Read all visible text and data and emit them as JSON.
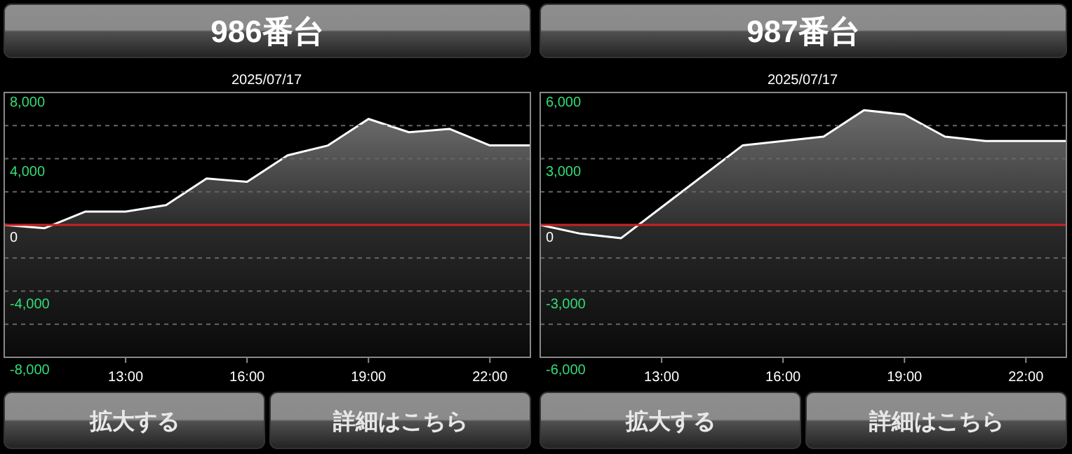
{
  "chart_data": [
    {
      "type": "area",
      "title": "986番台",
      "subtitle": "2025/07/17",
      "x": [
        10,
        11,
        12,
        13,
        14,
        15,
        16,
        17,
        18,
        19,
        20,
        21,
        22,
        23
      ],
      "series": [
        {
          "color": "#ffffff",
          "values": [
            0,
            -200,
            800,
            800,
            1200,
            2800,
            2600,
            4200,
            4800,
            6400,
            5600,
            5800,
            4800,
            4800
          ]
        }
      ],
      "xlim": [
        10,
        23
      ],
      "xticks": [
        {
          "value": 13,
          "label": "13:00"
        },
        {
          "value": 16,
          "label": "16:00"
        },
        {
          "value": 19,
          "label": "19:00"
        },
        {
          "value": 22,
          "label": "22:00"
        }
      ],
      "ylim": [
        -8000,
        8000
      ],
      "yticks": [
        {
          "value": 8000,
          "label": "8,000"
        },
        {
          "value": 6000,
          "label": null
        },
        {
          "value": 4000,
          "label": "4,000"
        },
        {
          "value": 2000,
          "label": null
        },
        0,
        {
          "value": -2000,
          "label": null
        },
        {
          "value": -4000,
          "label": "-4,000"
        },
        {
          "value": -6000,
          "label": null
        },
        {
          "value": -8000,
          "label": "-8,000"
        }
      ],
      "grid": "y",
      "ref_lines": [
        {
          "axis": "y",
          "value": 0,
          "color": "#cc2222"
        }
      ],
      "bands": [
        {
          "axis": "y",
          "from": -8000,
          "to": 0,
          "color": "#2a2a2a"
        }
      ],
      "annotations": [
        "拡大する",
        "詳細はこちら"
      ]
    },
    {
      "type": "area",
      "title": "987番台",
      "subtitle": "2025/07/17",
      "x": [
        10,
        11,
        12,
        13,
        14,
        15,
        16,
        17,
        18,
        19,
        20,
        21,
        22,
        23
      ],
      "series": [
        {
          "color": "#ffffff",
          "values": [
            0,
            -400,
            -600,
            800,
            2200,
            3600,
            3800,
            4000,
            5200,
            5000,
            4000,
            3800,
            3800,
            3800
          ]
        }
      ],
      "xlim": [
        10,
        23
      ],
      "xticks": [
        {
          "value": 13,
          "label": "13:00"
        },
        {
          "value": 16,
          "label": "16:00"
        },
        {
          "value": 19,
          "label": "19:00"
        },
        {
          "value": 22,
          "label": "22:00"
        }
      ],
      "ylim": [
        -6000,
        6000
      ],
      "yticks": [
        {
          "value": 6000,
          "label": "6,000"
        },
        {
          "value": 4500,
          "label": null
        },
        {
          "value": 3000,
          "label": "3,000"
        },
        {
          "value": 1500,
          "label": null
        },
        0,
        {
          "value": -1500,
          "label": null
        },
        {
          "value": -3000,
          "label": "-3,000"
        },
        {
          "value": -4500,
          "label": null
        },
        {
          "value": -6000,
          "label": "-6,000"
        }
      ],
      "grid": "y",
      "ref_lines": [
        {
          "axis": "y",
          "value": 0,
          "color": "#cc2222"
        }
      ],
      "bands": [
        {
          "axis": "y",
          "from": -6000,
          "to": 0,
          "color": "#2a2a2a"
        }
      ],
      "annotations": [
        "拡大する",
        "詳細はこちら"
      ]
    }
  ]
}
